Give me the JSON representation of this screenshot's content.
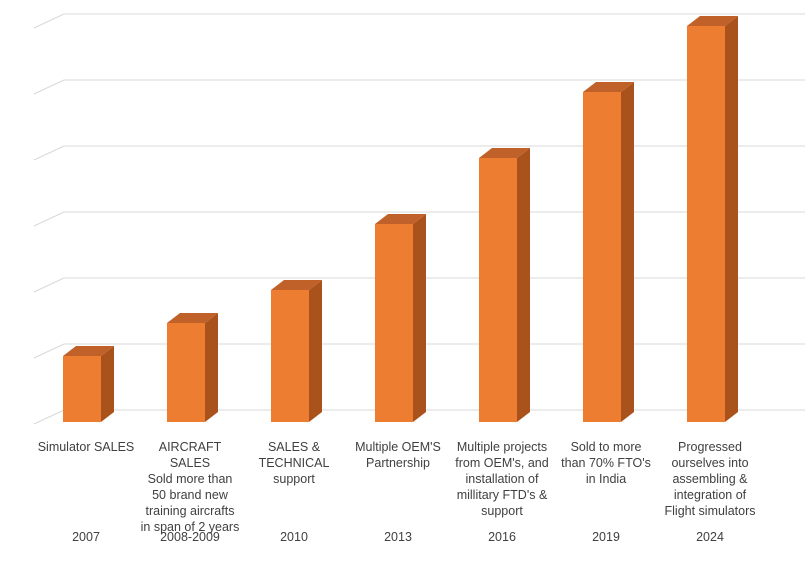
{
  "chart_data": {
    "type": "bar",
    "style": "3d-column",
    "categories": [
      "Simulator SALES",
      "AIRCRAFT SALES\nSold more than\n50 brand new\ntraining aircrafts\nin span of 2 years",
      "SALES &\nTECHNICAL\nsupport",
      "Multiple OEM'S\nPartnership",
      "Multiple projects\nfrom OEM's, and\ninstallation of\nmillitary FTD's  &\nsupport",
      "Sold to more\nthan 70% FTO's\nin India",
      "Progressed\nourselves into\nassembling &\nintegration of\nFlight simulators"
    ],
    "years": [
      "2007",
      "2008-2009",
      "2010",
      "2013",
      "2016",
      "2019",
      "2024"
    ],
    "values": [
      1,
      1.5,
      2,
      3,
      4,
      5,
      6
    ],
    "ylim": [
      0,
      6
    ],
    "grid": true,
    "title": "",
    "xlabel": "",
    "ylabel": "",
    "colors": {
      "front": "#ED7D31",
      "side": "#A9521C",
      "top": "#C0612A",
      "grid": "#D9D9D9"
    }
  }
}
